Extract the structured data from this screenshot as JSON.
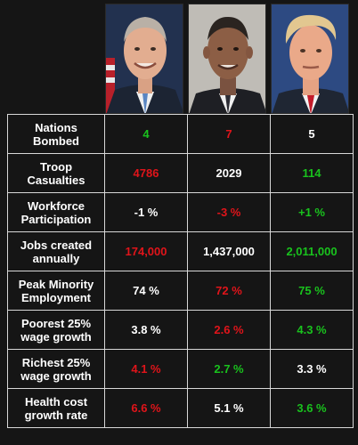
{
  "rows": [
    {
      "label": [
        "Nations",
        "Bombed"
      ],
      "values": [
        {
          "text": "4",
          "color": "green"
        },
        {
          "text": "7",
          "color": "red"
        },
        {
          "text": "5",
          "color": "white"
        }
      ]
    },
    {
      "label": [
        "Troop",
        "Casualties"
      ],
      "values": [
        {
          "text": "4786",
          "color": "red"
        },
        {
          "text": "2029",
          "color": "white"
        },
        {
          "text": "114",
          "color": "green"
        }
      ]
    },
    {
      "label": [
        "Workforce",
        "Participation"
      ],
      "values": [
        {
          "text": "-1 %",
          "color": "white"
        },
        {
          "text": "-3 %",
          "color": "red"
        },
        {
          "text": "+1 %",
          "color": "green"
        }
      ]
    },
    {
      "label": [
        "Jobs created",
        "annually"
      ],
      "values": [
        {
          "text": "174,000",
          "color": "red"
        },
        {
          "text": "1,437,000",
          "color": "white"
        },
        {
          "text": "2,011,000",
          "color": "green"
        }
      ]
    },
    {
      "label": [
        "Peak Minority",
        "Employment"
      ],
      "values": [
        {
          "text": "74 %",
          "color": "white"
        },
        {
          "text": "72 %",
          "color": "red"
        },
        {
          "text": "75 %",
          "color": "green"
        }
      ]
    },
    {
      "label": [
        "Poorest 25%",
        "wage growth"
      ],
      "values": [
        {
          "text": "3.8 %",
          "color": "white"
        },
        {
          "text": "2.6 %",
          "color": "red"
        },
        {
          "text": "4.3 %",
          "color": "green"
        }
      ]
    },
    {
      "label": [
        "Richest 25%",
        "wage growth"
      ],
      "values": [
        {
          "text": "4.1 %",
          "color": "red"
        },
        {
          "text": "2.7 %",
          "color": "green"
        },
        {
          "text": "3.3 %",
          "color": "white"
        }
      ]
    },
    {
      "label": [
        "Health cost",
        "growth rate"
      ],
      "values": [
        {
          "text": "6.6 %",
          "color": "red"
        },
        {
          "text": "5.1 %",
          "color": "white"
        },
        {
          "text": "3.6 %",
          "color": "green"
        }
      ]
    }
  ],
  "colors": {
    "red": "#e0141a",
    "green": "#19c21d",
    "white": "#ffffff",
    "background": "#151515",
    "border": "#d8d8d8"
  }
}
